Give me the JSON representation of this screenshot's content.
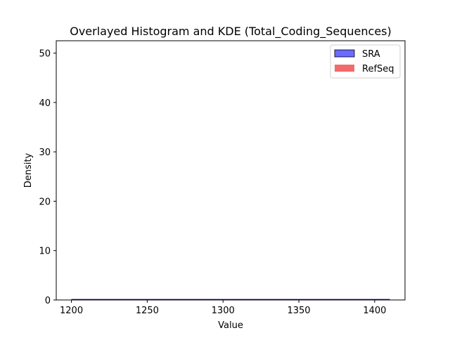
{
  "chart_data": {
    "type": "histogram",
    "title": "Overlayed Histogram and KDE (Total_Coding_Sequences)",
    "xlabel": "Value",
    "ylabel": "Density",
    "xlim": [
      1190,
      1420
    ],
    "ylim": [
      0,
      52.5
    ],
    "xticks": [
      1200,
      1250,
      1300,
      1350,
      1400
    ],
    "yticks": [
      0,
      10,
      20,
      30,
      40,
      50
    ],
    "grid": false,
    "legend_position": "top-right",
    "series": [
      {
        "name": "SRA",
        "kind": "histogram+kde",
        "fill_color": "#6b6bff",
        "edge_color": "#000000",
        "line_color": "#0000b3",
        "x_range": [
          1200,
          1410
        ],
        "values": [
          0,
          0
        ]
      },
      {
        "name": "RefSeq",
        "kind": "histogram+kde",
        "fill_color": "#f36a6a",
        "edge_color": "none",
        "line_color": "#e05050",
        "x_range": [
          1200,
          1410
        ],
        "values": [
          0,
          0
        ]
      }
    ]
  }
}
